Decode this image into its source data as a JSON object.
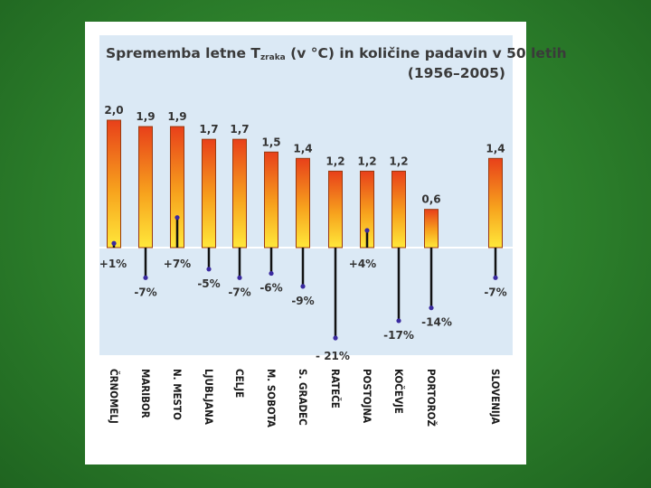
{
  "chart_data": {
    "type": "bar",
    "title": "Sprememba letne T",
    "title_subscript": "zraka",
    "title_rest": " (v °C) in količine padavin v 50 letih",
    "subtitle": "(1956–2005)",
    "categories": [
      "ČRNOMELJ",
      "MARIBOR",
      "N. MESTO",
      "LJUBLJANA",
      "CELJE",
      "M. SOBOTA",
      "S. GRADEC",
      "RATEČE",
      "POSTOJNA",
      "KOČEVJE",
      "PORTOROŽ",
      "SLOVENIJA"
    ],
    "series": [
      {
        "values": [
          2.0,
          1.9,
          1.9,
          1.7,
          1.7,
          1.5,
          1.4,
          1.2,
          1.2,
          1.2,
          0.6,
          1.4
        ],
        "value_labels": [
          "2,0",
          "1,9",
          "1,9",
          "1,7",
          "1,7",
          "1,5",
          "1,4",
          "1,2",
          "1,2",
          "1,2",
          "0,6",
          "1,4"
        ]
      },
      {
        "values": [
          1,
          -7,
          7,
          -5,
          -7,
          -6,
          -9,
          -21,
          4,
          -17,
          -14,
          -7
        ],
        "value_labels": [
          "+1%",
          "-7%",
          "+7%",
          "-5%",
          "-7%",
          "-6%",
          "-9%",
          "- 21%",
          "+4%",
          "-17%",
          "-14%",
          "-7%"
        ]
      }
    ],
    "ylim_temperature": [
      0,
      2.0
    ],
    "ylim_precipitation": [
      -21,
      10
    ],
    "grid": false,
    "colors": {
      "chart_background": "#dbe9f5",
      "bar_top": "#e8401a",
      "bar_mid": "#f7a21d",
      "bar_bottom": "#ffe83a",
      "bar_border": "#9a3a10",
      "zero_line": "#ffffff",
      "precip_line": "#111111",
      "precip_dot": "#3a2aa0",
      "slide_background": "#2e862c"
    }
  }
}
